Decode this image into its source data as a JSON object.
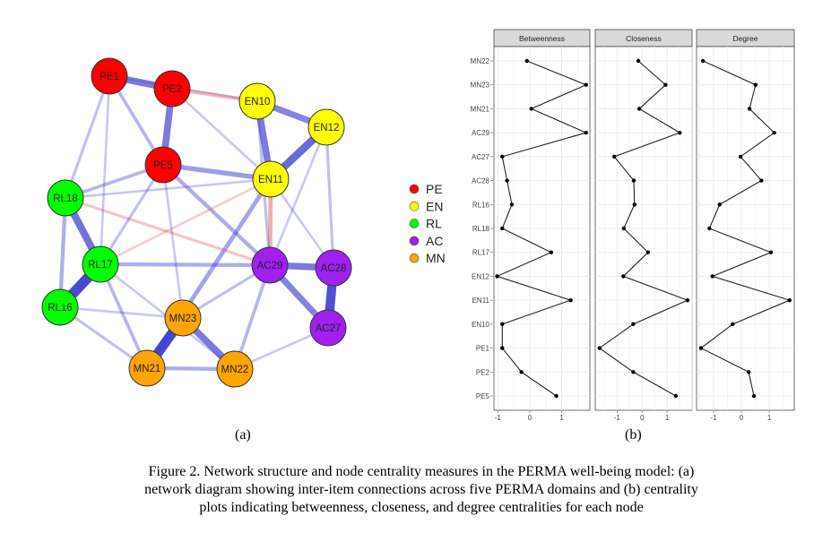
{
  "network": {
    "groups": [
      {
        "name": "PE",
        "color": "#ff0000"
      },
      {
        "name": "EN",
        "color": "#ffff00"
      },
      {
        "name": "RL",
        "color": "#00ff00"
      },
      {
        "name": "AC",
        "color": "#a020f0"
      },
      {
        "name": "MN",
        "color": "#ffa500"
      }
    ],
    "nodes": [
      {
        "id": "PE1",
        "group": "PE"
      },
      {
        "id": "PE2",
        "group": "PE"
      },
      {
        "id": "PE5",
        "group": "PE"
      },
      {
        "id": "EN10",
        "group": "EN"
      },
      {
        "id": "EN11",
        "group": "EN"
      },
      {
        "id": "EN12",
        "group": "EN"
      },
      {
        "id": "RL16",
        "group": "RL"
      },
      {
        "id": "RL17",
        "group": "RL"
      },
      {
        "id": "RL18",
        "group": "RL"
      },
      {
        "id": "AC27",
        "group": "AC"
      },
      {
        "id": "AC28",
        "group": "AC"
      },
      {
        "id": "AC29",
        "group": "AC"
      },
      {
        "id": "MN21",
        "group": "MN"
      },
      {
        "id": "MN22",
        "group": "MN"
      },
      {
        "id": "MN23",
        "group": "MN"
      }
    ],
    "edges": [
      [
        "PE1",
        "PE2",
        0.6
      ],
      [
        "PE2",
        "PE5",
        0.6
      ],
      [
        "PE1",
        "PE5",
        0.25
      ],
      [
        "EN10",
        "EN12",
        0.55
      ],
      [
        "EN10",
        "EN11",
        0.6
      ],
      [
        "EN12",
        "EN11",
        0.7
      ],
      [
        "RL18",
        "RL17",
        0.65
      ],
      [
        "RL17",
        "RL16",
        0.95
      ],
      [
        "RL18",
        "RL16",
        0.3
      ],
      [
        "AC29",
        "AC28",
        0.6
      ],
      [
        "AC28",
        "AC27",
        0.85
      ],
      [
        "AC29",
        "AC27",
        0.55
      ],
      [
        "MN23",
        "MN21",
        0.9
      ],
      [
        "MN23",
        "MN22",
        0.6
      ],
      [
        "MN21",
        "MN22",
        0.3
      ],
      [
        "PE5",
        "EN11",
        0.4
      ],
      [
        "PE5",
        "RL18",
        0.25
      ],
      [
        "PE1",
        "RL18",
        0.2
      ],
      [
        "EN11",
        "MN21",
        0.35
      ],
      [
        "PE5",
        "AC29",
        0.3
      ],
      [
        "RL17",
        "AC29",
        0.3
      ],
      [
        "RL17",
        "MN21",
        0.25
      ],
      [
        "PE2",
        "EN10",
        -0.3
      ],
      [
        "EN11",
        "AC29",
        -0.35
      ],
      [
        "RL18",
        "AC29",
        -0.2
      ],
      [
        "RL17",
        "EN11",
        -0.15
      ],
      [
        "PE5",
        "RL17",
        0.2
      ],
      [
        "EN12",
        "AC28",
        0.2
      ],
      [
        "AC29",
        "MN22",
        0.25
      ],
      [
        "RL16",
        "MN21",
        0.2
      ],
      [
        "EN10",
        "AC29",
        0.2
      ],
      [
        "PE1",
        "RL17",
        0.15
      ],
      [
        "MN23",
        "AC29",
        0.2
      ],
      [
        "EN11",
        "AC28",
        0.15
      ],
      [
        "PE2",
        "EN11",
        0.15
      ],
      [
        "RL16",
        "MN23",
        0.15
      ],
      [
        "EN12",
        "AC29",
        0.15
      ],
      [
        "PE5",
        "MN23",
        0.15
      ],
      [
        "RL18",
        "EN11",
        0.15
      ],
      [
        "MN22",
        "AC27",
        0.15
      ],
      [
        "RL17",
        "MN22",
        0.15
      ],
      [
        "PE1",
        "EN10",
        0.1
      ]
    ]
  },
  "labels": {
    "a": "(a)",
    "b": "(b)"
  },
  "caption": "Figure 2. Network structure and node centrality measures in the PERMA well-being model: (a) network diagram showing inter-item connections across five PERMA domains and (b) centrality plots indicating betweenness, closeness, and degree centralities for each node",
  "chart_data": {
    "type": "line",
    "categories": [
      "MN22",
      "MN23",
      "MN21",
      "AC29",
      "AC27",
      "AC28",
      "RL16",
      "RL18",
      "RL17",
      "EN12",
      "EN11",
      "EN10",
      "PE1",
      "PE2",
      "PE5"
    ],
    "series": [
      {
        "name": "Betweenness",
        "values": [
          -0.09,
          1.76,
          0.05,
          1.76,
          -0.86,
          -0.71,
          -0.56,
          -0.86,
          0.67,
          -1.02,
          1.28,
          -0.86,
          -0.86,
          -0.26,
          0.83
        ],
        "ticks": [
          "-1",
          "0",
          "1"
        ],
        "xlim": [
          -1.12,
          1.88
        ]
      },
      {
        "name": "Closeness",
        "values": [
          -0.15,
          0.94,
          -0.11,
          1.51,
          -1.11,
          -0.33,
          -0.3,
          -0.73,
          0.24,
          -0.75,
          1.82,
          -0.35,
          -1.7,
          -0.35,
          1.35
        ],
        "ticks": [
          "-1",
          "0",
          "1"
        ],
        "xlim": [
          -1.87,
          2.0
        ]
      },
      {
        "name": "Degree",
        "values": [
          -1.38,
          0.51,
          0.29,
          1.18,
          -0.03,
          0.72,
          -0.78,
          -1.15,
          1.06,
          -1.04,
          1.73,
          -0.31,
          -1.45,
          0.26,
          0.45
        ],
        "ticks": [
          "-1",
          "0",
          "1"
        ],
        "xlim": [
          -1.61,
          1.9
        ]
      }
    ],
    "grid": true
  }
}
